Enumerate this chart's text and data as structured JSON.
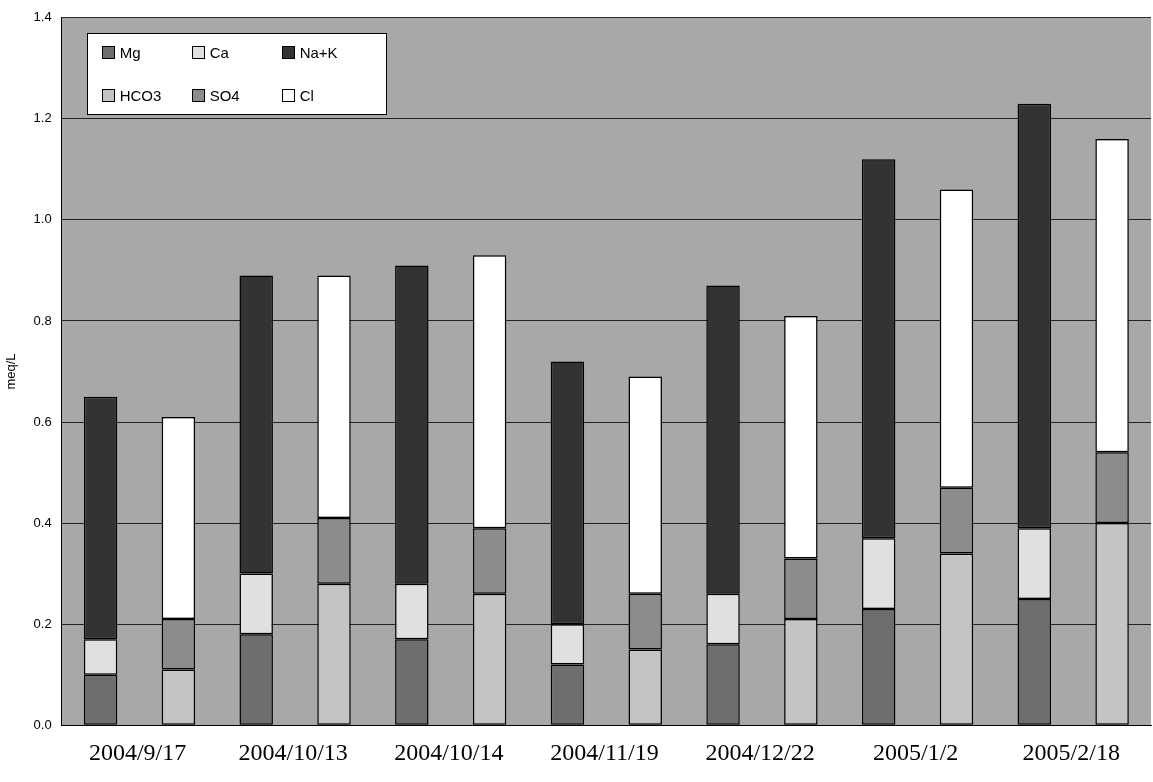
{
  "chart_data": {
    "type": "bar",
    "stacked": true,
    "ylabel": "meq/L",
    "categories": [
      "2004/9/17",
      null,
      "2004/10/13",
      null,
      "2004/10/14",
      null,
      "2004/11/19",
      null,
      "2004/12/22",
      null,
      "2005/1/2",
      null,
      "2005/2/18",
      null
    ],
    "series": [
      {
        "name": "Mg",
        "color": "#6e6e6e",
        "values": [
          0.1,
          null,
          0.18,
          null,
          0.17,
          null,
          0.12,
          null,
          0.16,
          null,
          0.23,
          null,
          0.25,
          null
        ]
      },
      {
        "name": "Ca",
        "color": "#e0e0e0",
        "values": [
          0.07,
          null,
          0.12,
          null,
          0.11,
          null,
          0.08,
          null,
          0.1,
          null,
          0.14,
          null,
          0.14,
          null
        ]
      },
      {
        "name": "Na+K",
        "color": "#333333",
        "values": [
          0.48,
          null,
          0.59,
          null,
          0.63,
          null,
          0.52,
          null,
          0.61,
          null,
          0.75,
          null,
          0.84,
          null
        ]
      },
      {
        "name": "HCO3",
        "color": "#c4c4c4",
        "values": [
          null,
          0.11,
          null,
          0.28,
          null,
          0.26,
          null,
          0.15,
          null,
          0.21,
          null,
          0.34,
          null,
          0.4
        ]
      },
      {
        "name": "SO4",
        "color": "#8c8c8c",
        "values": [
          null,
          0.1,
          null,
          0.13,
          null,
          0.13,
          null,
          0.11,
          null,
          0.12,
          null,
          0.13,
          null,
          0.14
        ]
      },
      {
        "name": "Cl",
        "color": "#ffffff",
        "values": [
          null,
          0.4,
          null,
          0.48,
          null,
          0.54,
          null,
          0.43,
          null,
          0.48,
          null,
          0.59,
          null,
          0.62
        ]
      }
    ],
    "ylim": [
      0,
      1.4
    ],
    "yticks": [
      {
        "value": 0,
        "label": "0.0"
      },
      0.2,
      0.4,
      0.6,
      0.8,
      {
        "value": 1,
        "label": "1.0"
      },
      1.2,
      1.4
    ],
    "grid": "y",
    "legend": "top left"
  }
}
